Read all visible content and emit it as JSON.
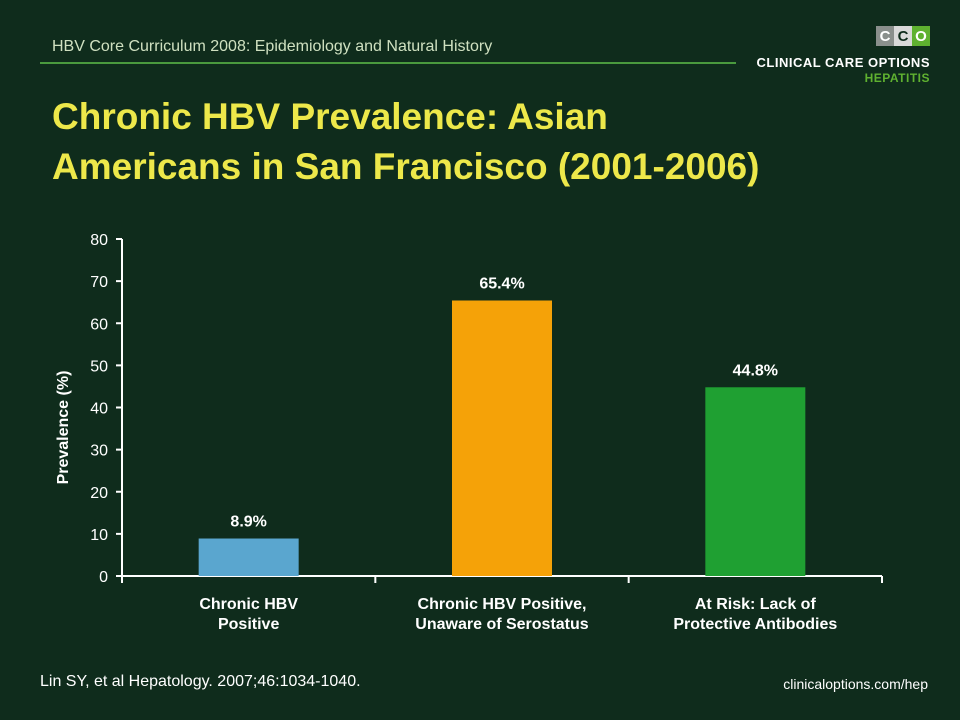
{
  "header": {
    "course_title": "HBV Core Curriculum 2008: Epidemiology and Natural History"
  },
  "logo": {
    "letters": [
      "C",
      "C",
      "O"
    ],
    "line1": "CLINICAL CARE OPTIONS",
    "line2": "HEPATITIS",
    "colors": {
      "grey": "#8a8f8c",
      "light": "#d9d9d9",
      "green": "#5fb130"
    }
  },
  "slide": {
    "title_line1": "Chronic HBV Prevalence: Asian",
    "title_line2": "Americans in San Francisco (2001-2006)"
  },
  "chart_data": {
    "type": "bar",
    "title": "",
    "ylabel": "Prevalence (%)",
    "xlabel": "",
    "ylim": [
      0,
      80
    ],
    "yticks": [
      "0",
      "10",
      "20",
      "30",
      "40",
      "50",
      "60",
      "70",
      "80"
    ],
    "categories": [
      [
        "Chronic HBV",
        "Positive"
      ],
      [
        "Chronic HBV Positive,",
        "Unaware of Serostatus"
      ],
      [
        "At Risk: Lack of",
        "Protective Antibodies"
      ]
    ],
    "values": [
      8.9,
      65.4,
      44.8
    ],
    "data_labels": [
      "8.9%",
      "65.4%",
      "44.8%"
    ],
    "colors": [
      "#5aa6cf",
      "#f5a208",
      "#1fa032"
    ],
    "grid": false,
    "legend": "none"
  },
  "footer": {
    "citation": "Lin SY, et al Hepatology. 2007;46:1034-1040.",
    "site": "clinicaloptions.com/hep"
  }
}
